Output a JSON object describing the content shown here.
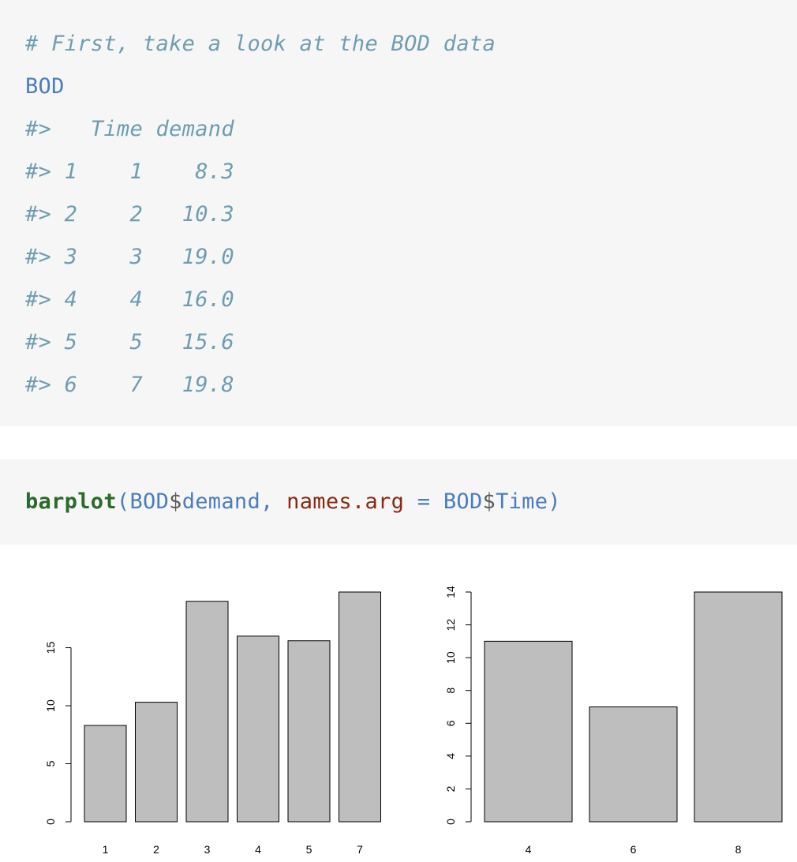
{
  "output_block": {
    "lines": [
      "# First, take a look at the BOD data",
      "BOD",
      "#>   Time demand",
      "#> 1    1    8.3",
      "#> 2    2   10.3",
      "#> 3    3   19.0",
      "#> 4    4   16.0",
      "#> 5    5   15.6",
      "#> 6    7   19.8"
    ]
  },
  "call_block": {
    "fn": "barplot",
    "open_paren": "(",
    "obj1": "BOD",
    "dollar1": "$",
    "field1": "demand",
    "comma": ", ",
    "argname": "names.arg",
    "equals": " = ",
    "obj2": "BOD",
    "dollar2": "$",
    "field2": "Time",
    "close_paren": ")"
  },
  "colors": {
    "bar_fill": "#bebebe",
    "bar_stroke": "#000000",
    "code_background": "#f6f6f6"
  },
  "chart_data": [
    {
      "type": "bar",
      "categories": [
        "1",
        "2",
        "3",
        "4",
        "5",
        "7"
      ],
      "values": [
        8.3,
        10.3,
        19.0,
        16.0,
        15.6,
        19.8
      ],
      "yticks": [
        0,
        5,
        10,
        15
      ],
      "ylim": [
        0,
        19.8
      ],
      "title": "",
      "xlabel": "",
      "ylabel": ""
    },
    {
      "type": "bar",
      "categories": [
        "4",
        "6",
        "8"
      ],
      "values": [
        11,
        7,
        14
      ],
      "yticks": [
        0,
        2,
        4,
        6,
        8,
        10,
        12,
        14
      ],
      "ylim": [
        0,
        14
      ],
      "title": "",
      "xlabel": "",
      "ylabel": ""
    }
  ]
}
